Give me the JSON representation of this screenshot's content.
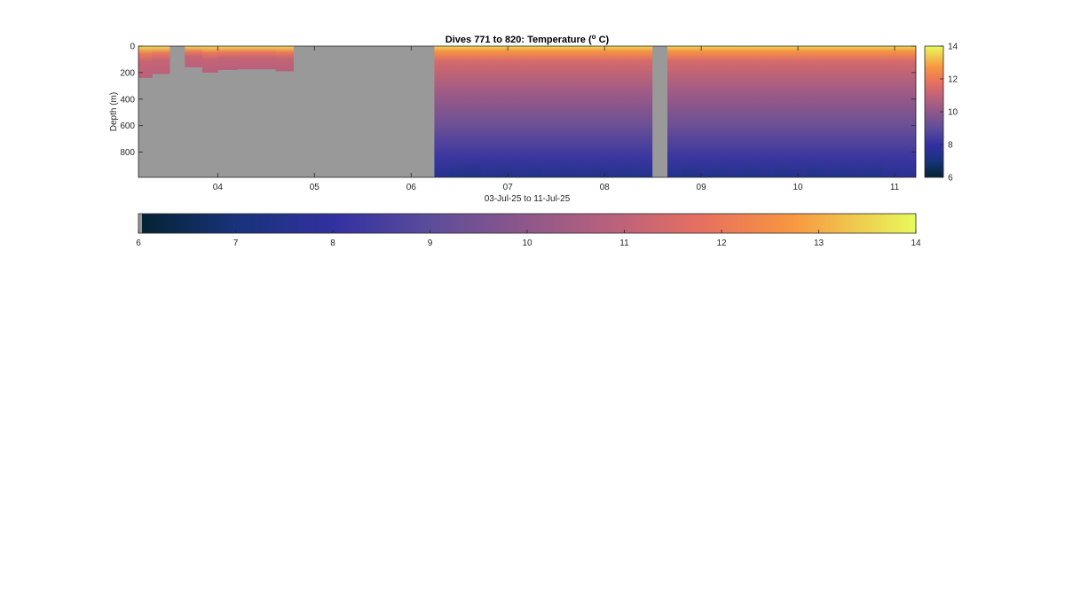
{
  "chart_data": {
    "type": "heatmap",
    "title": "Dives 771 to 820: Temperature (",
    "title_superscript": "o",
    "title_suffix": " C)",
    "xlabel": "03-Jul-25 to 11-Jul-25",
    "ylabel": "Depth (m)",
    "x_ticks": [
      "04",
      "05",
      "06",
      "07",
      "08",
      "09",
      "10",
      "11"
    ],
    "x_tick_values": [
      4,
      5,
      6,
      7,
      8,
      9,
      10,
      11
    ],
    "xlim": [
      3.18,
      11.22
    ],
    "y_ticks": [
      "0",
      "200",
      "400",
      "600",
      "800"
    ],
    "y_tick_values": [
      0,
      200,
      400,
      600,
      800
    ],
    "ylim": [
      0,
      990
    ],
    "y_reversed": true,
    "colormap": "thermal",
    "clim": [
      6,
      14
    ],
    "side_colorbar_ticks": [
      "6",
      "8",
      "10",
      "12",
      "14"
    ],
    "bottom_colorbar_ticks": [
      "6",
      "7",
      "8",
      "9",
      "10",
      "11",
      "12",
      "13",
      "14"
    ],
    "missing_color": "#999999",
    "columns": [
      {
        "x0": 3.18,
        "x1": 3.32,
        "max_depth": 240,
        "bottom_temp": 10.9
      },
      {
        "x0": 3.32,
        "x1": 3.5,
        "max_depth": 210,
        "bottom_temp": 10.9
      },
      {
        "x0": 3.66,
        "x1": 3.84,
        "max_depth": 160,
        "bottom_temp": 10.9
      },
      {
        "x0": 3.84,
        "x1": 4.0,
        "max_depth": 200,
        "bottom_temp": 10.8
      },
      {
        "x0": 4.0,
        "x1": 4.2,
        "max_depth": 180,
        "bottom_temp": 10.8
      },
      {
        "x0": 4.2,
        "x1": 4.4,
        "max_depth": 175,
        "bottom_temp": 10.8
      },
      {
        "x0": 4.4,
        "x1": 4.6,
        "max_depth": 175,
        "bottom_temp": 10.8
      },
      {
        "x0": 4.6,
        "x1": 4.78,
        "max_depth": 190,
        "bottom_temp": 10.8
      },
      {
        "x0": 6.24,
        "x1": 6.4,
        "max_depth": 990,
        "bottom_temp": 7.5
      },
      {
        "x0": 6.4,
        "x1": 6.56,
        "max_depth": 990,
        "bottom_temp": 7.3
      },
      {
        "x0": 6.56,
        "x1": 6.72,
        "max_depth": 990,
        "bottom_temp": 7.2
      },
      {
        "x0": 6.72,
        "x1": 6.88,
        "max_depth": 990,
        "bottom_temp": 7.4
      },
      {
        "x0": 6.88,
        "x1": 7.04,
        "max_depth": 990,
        "bottom_temp": 7.3
      },
      {
        "x0": 7.04,
        "x1": 7.2,
        "max_depth": 990,
        "bottom_temp": 7.4
      },
      {
        "x0": 7.2,
        "x1": 7.36,
        "max_depth": 990,
        "bottom_temp": 7.3
      },
      {
        "x0": 7.36,
        "x1": 7.52,
        "max_depth": 990,
        "bottom_temp": 7.4
      },
      {
        "x0": 7.52,
        "x1": 7.68,
        "max_depth": 990,
        "bottom_temp": 7.3
      },
      {
        "x0": 7.68,
        "x1": 7.84,
        "max_depth": 990,
        "bottom_temp": 7.4
      },
      {
        "x0": 7.84,
        "x1": 8.0,
        "max_depth": 990,
        "bottom_temp": 7.3
      },
      {
        "x0": 8.0,
        "x1": 8.16,
        "max_depth": 990,
        "bottom_temp": 7.4
      },
      {
        "x0": 8.16,
        "x1": 8.32,
        "max_depth": 990,
        "bottom_temp": 7.3
      },
      {
        "x0": 8.32,
        "x1": 8.49,
        "max_depth": 990,
        "bottom_temp": 7.4
      },
      {
        "x0": 8.65,
        "x1": 8.8,
        "max_depth": 990,
        "bottom_temp": 7.4
      },
      {
        "x0": 8.8,
        "x1": 8.96,
        "max_depth": 990,
        "bottom_temp": 7.3
      },
      {
        "x0": 8.96,
        "x1": 9.12,
        "max_depth": 990,
        "bottom_temp": 7.4
      },
      {
        "x0": 9.12,
        "x1": 9.28,
        "max_depth": 990,
        "bottom_temp": 7.3
      },
      {
        "x0": 9.28,
        "x1": 9.44,
        "max_depth": 990,
        "bottom_temp": 7.4
      },
      {
        "x0": 9.44,
        "x1": 9.6,
        "max_depth": 990,
        "bottom_temp": 7.3
      },
      {
        "x0": 9.6,
        "x1": 9.76,
        "max_depth": 990,
        "bottom_temp": 7.4
      },
      {
        "x0": 9.76,
        "x1": 9.92,
        "max_depth": 990,
        "bottom_temp": 7.3
      },
      {
        "x0": 9.92,
        "x1": 10.08,
        "max_depth": 990,
        "bottom_temp": 7.4
      },
      {
        "x0": 10.08,
        "x1": 10.24,
        "max_depth": 990,
        "bottom_temp": 7.3
      },
      {
        "x0": 10.24,
        "x1": 10.4,
        "max_depth": 990,
        "bottom_temp": 7.4
      },
      {
        "x0": 10.4,
        "x1": 10.56,
        "max_depth": 990,
        "bottom_temp": 7.3
      },
      {
        "x0": 10.56,
        "x1": 10.72,
        "max_depth": 990,
        "bottom_temp": 7.4
      },
      {
        "x0": 10.72,
        "x1": 10.88,
        "max_depth": 990,
        "bottom_temp": 7.3
      },
      {
        "x0": 10.88,
        "x1": 11.04,
        "max_depth": 990,
        "bottom_temp": 7.5
      },
      {
        "x0": 11.04,
        "x1": 11.22,
        "max_depth": 990,
        "bottom_temp": 7.6
      }
    ]
  }
}
